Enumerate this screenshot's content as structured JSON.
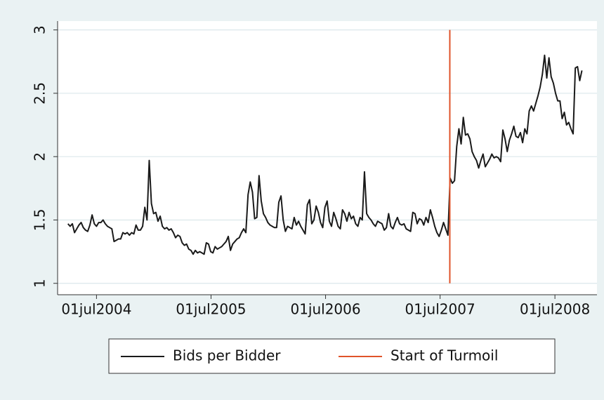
{
  "chart_data": {
    "type": "line",
    "x": [
      "2004-04-01",
      "2004-04-08",
      "2004-04-15",
      "2004-04-22",
      "2004-04-29",
      "2004-05-06",
      "2004-05-13",
      "2004-05-20",
      "2004-05-27",
      "2004-06-03",
      "2004-06-10",
      "2004-06-17",
      "2004-06-24",
      "2004-07-01",
      "2004-07-08",
      "2004-07-15",
      "2004-07-22",
      "2004-07-29",
      "2004-08-05",
      "2004-08-12",
      "2004-08-19",
      "2004-08-26",
      "2004-09-02",
      "2004-09-09",
      "2004-09-16",
      "2004-09-23",
      "2004-09-30",
      "2004-10-07",
      "2004-10-14",
      "2004-10-21",
      "2004-10-28",
      "2004-11-04",
      "2004-11-11",
      "2004-11-18",
      "2004-11-25",
      "2004-12-02",
      "2004-12-09",
      "2004-12-16",
      "2004-12-23",
      "2004-12-30",
      "2005-01-06",
      "2005-01-13",
      "2005-01-20",
      "2005-01-27",
      "2005-02-03",
      "2005-02-10",
      "2005-02-17",
      "2005-02-24",
      "2005-03-03",
      "2005-03-10",
      "2005-03-17",
      "2005-03-24",
      "2005-03-31",
      "2005-04-07",
      "2005-04-14",
      "2005-04-21",
      "2005-04-28",
      "2005-05-05",
      "2005-05-12",
      "2005-05-19",
      "2005-05-26",
      "2005-06-02",
      "2005-06-09",
      "2005-06-16",
      "2005-06-23",
      "2005-06-30",
      "2005-07-07",
      "2005-07-14",
      "2005-07-21",
      "2005-07-28",
      "2005-08-04",
      "2005-08-11",
      "2005-08-18",
      "2005-08-25",
      "2005-09-01",
      "2005-09-08",
      "2005-09-15",
      "2005-09-22",
      "2005-09-29",
      "2005-10-06",
      "2005-10-13",
      "2005-10-20",
      "2005-10-27",
      "2005-11-03",
      "2005-11-10",
      "2005-11-17",
      "2005-11-24",
      "2005-12-01",
      "2005-12-08",
      "2005-12-15",
      "2005-12-22",
      "2005-12-29",
      "2006-01-05",
      "2006-01-12",
      "2006-01-19",
      "2006-01-26",
      "2006-02-02",
      "2006-02-09",
      "2006-02-16",
      "2006-02-23",
      "2006-03-02",
      "2006-03-09",
      "2006-03-16",
      "2006-03-23",
      "2006-03-30",
      "2006-04-06",
      "2006-04-13",
      "2006-04-20",
      "2006-04-27",
      "2006-05-04",
      "2006-05-11",
      "2006-05-18",
      "2006-05-25",
      "2006-06-01",
      "2006-06-08",
      "2006-06-15",
      "2006-06-22",
      "2006-06-29",
      "2006-07-06",
      "2006-07-13",
      "2006-07-20",
      "2006-07-27",
      "2006-08-03",
      "2006-08-10",
      "2006-08-17",
      "2006-08-24",
      "2006-08-31",
      "2006-09-07",
      "2006-09-14",
      "2006-09-21",
      "2006-09-28",
      "2006-10-05",
      "2006-10-12",
      "2006-10-19",
      "2006-10-26",
      "2006-11-02",
      "2006-11-09",
      "2006-11-16",
      "2006-11-23",
      "2006-11-30",
      "2006-12-07",
      "2006-12-14",
      "2006-12-21",
      "2006-12-28",
      "2007-01-04",
      "2007-01-11",
      "2007-01-18",
      "2007-01-25",
      "2007-02-01",
      "2007-02-08",
      "2007-02-15",
      "2007-02-22",
      "2007-03-01",
      "2007-03-08",
      "2007-03-15",
      "2007-03-22",
      "2007-03-29",
      "2007-04-05",
      "2007-04-12",
      "2007-04-19",
      "2007-04-26",
      "2007-05-03",
      "2007-05-10",
      "2007-05-17",
      "2007-05-24",
      "2007-05-31",
      "2007-06-07",
      "2007-06-14",
      "2007-06-21",
      "2007-06-28",
      "2007-07-05",
      "2007-07-12",
      "2007-07-19",
      "2007-07-26",
      "2007-08-02",
      "2007-08-09",
      "2007-08-16",
      "2007-08-23",
      "2007-08-30",
      "2007-09-06",
      "2007-09-13",
      "2007-09-20",
      "2007-09-27",
      "2007-10-04",
      "2007-10-11",
      "2007-10-18",
      "2007-10-25",
      "2007-11-01",
      "2007-11-08",
      "2007-11-15",
      "2007-11-22",
      "2007-11-29",
      "2007-12-06",
      "2007-12-13",
      "2007-12-20",
      "2007-12-27",
      "2008-01-03",
      "2008-01-10",
      "2008-01-17",
      "2008-01-24",
      "2008-01-31",
      "2008-02-07",
      "2008-02-14",
      "2008-02-21",
      "2008-02-28",
      "2008-03-06",
      "2008-03-13",
      "2008-03-20",
      "2008-03-27",
      "2008-04-03",
      "2008-04-10",
      "2008-04-17",
      "2008-04-24",
      "2008-05-01",
      "2008-05-08",
      "2008-05-15",
      "2008-05-22",
      "2008-05-29",
      "2008-06-05",
      "2008-06-12",
      "2008-06-19",
      "2008-06-26",
      "2008-07-03",
      "2008-07-10",
      "2008-07-17",
      "2008-07-24",
      "2008-07-31",
      "2008-08-07",
      "2008-08-14",
      "2008-08-21",
      "2008-08-28",
      "2008-09-04",
      "2008-09-11",
      "2008-09-18",
      "2008-09-25"
    ],
    "series": [
      {
        "name": "Bids per Bidder",
        "color": "#1a1a1a",
        "values": [
          1.47,
          1.45,
          1.47,
          1.4,
          1.43,
          1.46,
          1.48,
          1.44,
          1.42,
          1.41,
          1.46,
          1.54,
          1.47,
          1.45,
          1.48,
          1.48,
          1.5,
          1.47,
          1.45,
          1.44,
          1.43,
          1.33,
          1.34,
          1.35,
          1.35,
          1.4,
          1.39,
          1.4,
          1.38,
          1.4,
          1.39,
          1.46,
          1.42,
          1.42,
          1.45,
          1.6,
          1.5,
          1.97,
          1.63,
          1.55,
          1.56,
          1.49,
          1.53,
          1.45,
          1.43,
          1.44,
          1.42,
          1.43,
          1.4,
          1.36,
          1.38,
          1.37,
          1.32,
          1.3,
          1.31,
          1.27,
          1.26,
          1.23,
          1.26,
          1.24,
          1.25,
          1.24,
          1.23,
          1.32,
          1.31,
          1.25,
          1.24,
          1.29,
          1.27,
          1.28,
          1.29,
          1.31,
          1.33,
          1.37,
          1.26,
          1.31,
          1.33,
          1.35,
          1.36,
          1.4,
          1.43,
          1.4,
          1.7,
          1.8,
          1.72,
          1.51,
          1.52,
          1.85,
          1.65,
          1.55,
          1.52,
          1.48,
          1.46,
          1.45,
          1.44,
          1.44,
          1.64,
          1.69,
          1.5,
          1.41,
          1.45,
          1.44,
          1.43,
          1.52,
          1.46,
          1.49,
          1.45,
          1.42,
          1.39,
          1.62,
          1.66,
          1.47,
          1.5,
          1.61,
          1.56,
          1.48,
          1.44,
          1.6,
          1.65,
          1.49,
          1.45,
          1.56,
          1.51,
          1.45,
          1.43,
          1.58,
          1.55,
          1.49,
          1.56,
          1.51,
          1.53,
          1.47,
          1.45,
          1.52,
          1.5,
          1.88,
          1.55,
          1.52,
          1.5,
          1.47,
          1.45,
          1.49,
          1.48,
          1.47,
          1.42,
          1.44,
          1.55,
          1.45,
          1.43,
          1.48,
          1.52,
          1.47,
          1.46,
          1.47,
          1.43,
          1.42,
          1.41,
          1.56,
          1.55,
          1.47,
          1.51,
          1.5,
          1.46,
          1.52,
          1.48,
          1.58,
          1.52,
          1.45,
          1.4,
          1.37,
          1.42,
          1.48,
          1.43,
          1.38,
          1.83,
          1.79,
          1.81,
          2.08,
          2.22,
          2.1,
          2.31,
          2.17,
          2.18,
          2.14,
          2.04,
          2.0,
          1.97,
          1.91,
          1.97,
          2.02,
          1.92,
          1.95,
          1.98,
          2.02,
          1.99,
          2.0,
          1.99,
          1.96,
          2.21,
          2.14,
          2.04,
          2.13,
          2.18,
          2.24,
          2.16,
          2.15,
          2.19,
          2.11,
          2.22,
          2.18,
          2.36,
          2.4,
          2.36,
          2.42,
          2.48,
          2.55,
          2.65,
          2.8,
          2.62,
          2.78,
          2.63,
          2.58,
          2.5,
          2.44,
          2.44,
          2.3,
          2.35,
          2.25,
          2.27,
          2.22,
          2.18,
          2.7,
          2.71,
          2.6,
          2.68
        ]
      },
      {
        "name": "Start of Turmoil",
        "color": "#e0532a",
        "x": [
          "2007-08-01",
          "2007-08-01"
        ],
        "values": [
          1,
          3
        ]
      }
    ],
    "xlim": [
      "2004-02-28",
      "2008-11-12"
    ],
    "xticks": [
      {
        "value": "2004-07-01",
        "label": "01jul2004"
      },
      {
        "value": "2005-07-01",
        "label": "01jul2005"
      },
      {
        "value": "2006-07-01",
        "label": "01jul2006"
      },
      {
        "value": "2007-07-01",
        "label": "01jul2007"
      },
      {
        "value": "2008-07-01",
        "label": "01jul2008"
      }
    ],
    "ylim": [
      0.91,
      3.07
    ],
    "yticks": [
      1,
      1.5,
      2,
      2.5,
      3
    ],
    "grid": true,
    "legend": "bottom"
  }
}
